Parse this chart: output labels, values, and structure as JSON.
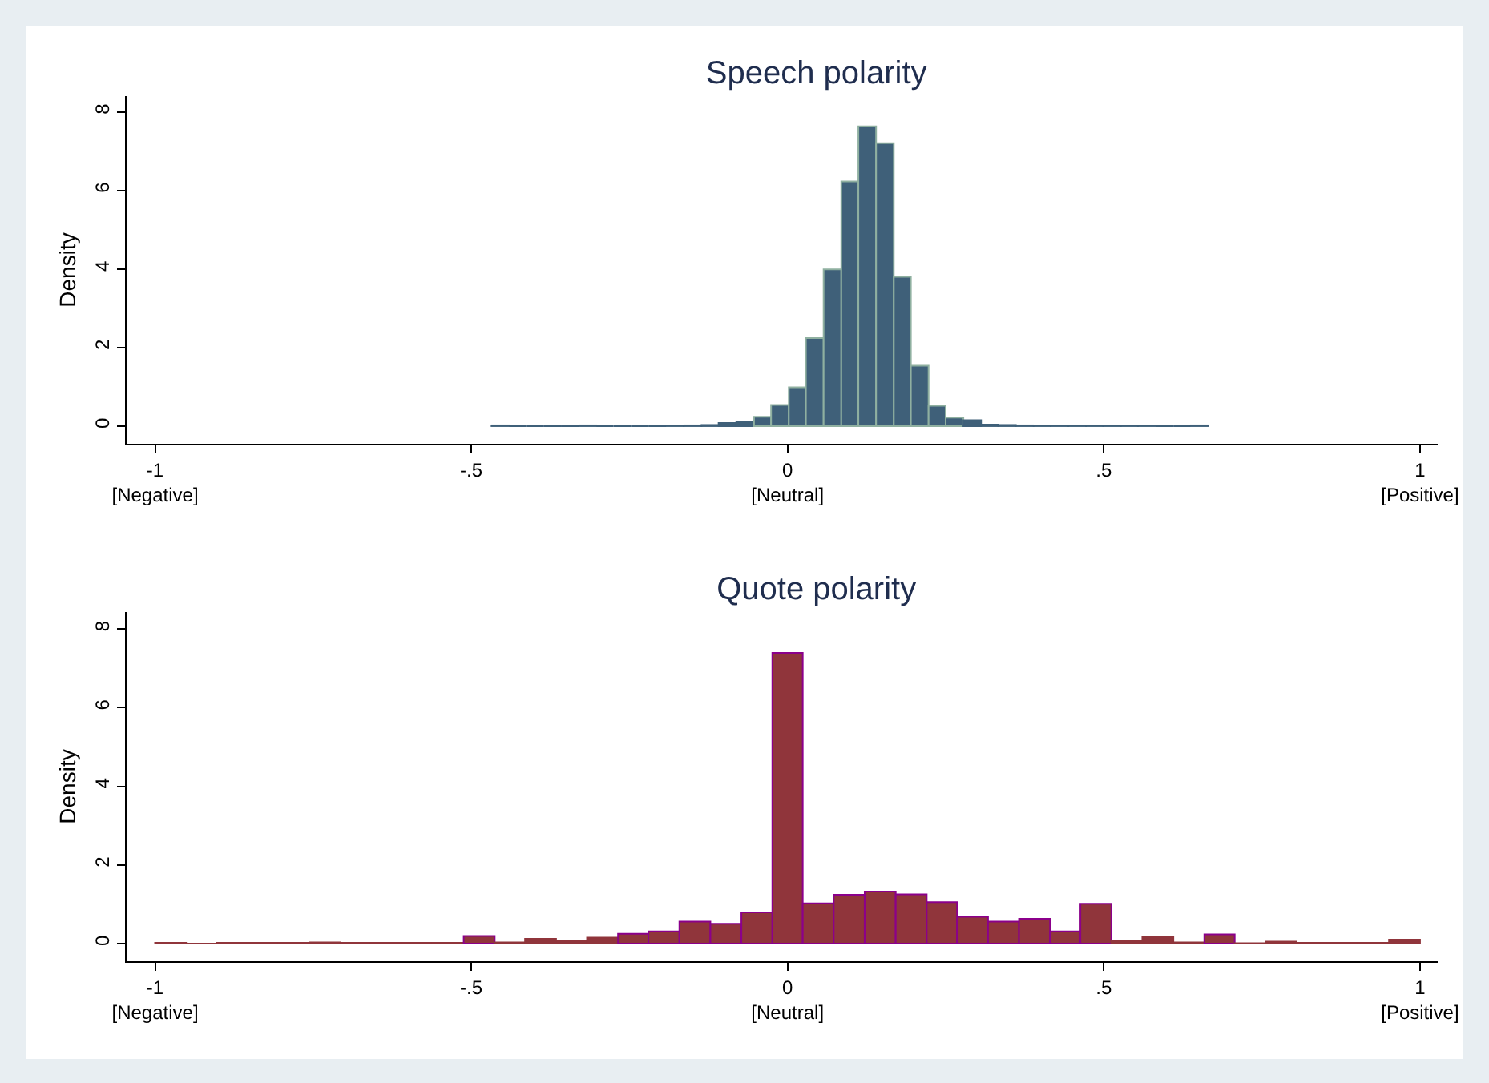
{
  "chart_data": [
    {
      "type": "histogram",
      "title": "Speech polarity",
      "ylabel": "Density",
      "color": "#3f6079",
      "bins": [
        -0.468,
        -0.44,
        -0.413,
        -0.385,
        -0.357,
        -0.33,
        -0.302,
        -0.275,
        -0.247,
        -0.219,
        -0.192,
        -0.164,
        -0.136,
        -0.109,
        -0.081,
        -0.053,
        -0.026,
        0.002,
        0.029,
        0.057,
        0.085,
        0.112,
        0.14,
        0.168,
        0.195,
        0.223,
        0.25,
        0.278,
        0.306,
        0.333,
        0.361,
        0.389,
        0.416,
        0.444,
        0.472,
        0.499,
        0.527,
        0.554,
        0.582,
        0.61,
        0.637,
        0.665
      ],
      "values": [
        0.02,
        0,
        0,
        0,
        0,
        0.02,
        0,
        0,
        0,
        0,
        0.01,
        0.02,
        0.03,
        0.08,
        0.11,
        0.24,
        0.54,
        0.99,
        2.24,
        3.99,
        6.23,
        7.63,
        7.2,
        3.8,
        1.54,
        0.52,
        0.22,
        0.15,
        0.04,
        0.03,
        0.02,
        0.01,
        0.01,
        0.01,
        0.01,
        0.01,
        0.01,
        0.01,
        0,
        0,
        0.02
      ],
      "xlim": [
        -1.045,
        1.028
      ],
      "ylim": [
        -0.45,
        8.4
      ],
      "xticks": [
        {
          "value": -1,
          "label": "-1\n[Negative]"
        },
        {
          "value": -0.5,
          "label": "-.5"
        },
        {
          "value": 0,
          "label": "0\n[Neutral]"
        },
        {
          "value": 0.5,
          "label": ".5"
        },
        {
          "value": 1,
          "label": "1\n[Positive]"
        }
      ],
      "yticks": [
        0,
        2,
        4,
        6,
        8
      ]
    },
    {
      "type": "histogram",
      "title": "Quote polarity",
      "ylabel": "Density",
      "color": "#90353b",
      "bins": [
        -1,
        -0.951,
        -0.902,
        -0.854,
        -0.805,
        -0.756,
        -0.707,
        -0.659,
        -0.61,
        -0.561,
        -0.512,
        -0.463,
        -0.415,
        -0.366,
        -0.317,
        -0.268,
        -0.22,
        -0.171,
        -0.122,
        -0.073,
        -0.024,
        0.024,
        0.073,
        0.122,
        0.171,
        0.22,
        0.268,
        0.317,
        0.366,
        0.415,
        0.463,
        0.512,
        0.561,
        0.61,
        0.659,
        0.707,
        0.756,
        0.805,
        0.854,
        0.902,
        0.951,
        1
      ],
      "values": [
        0.02,
        0,
        0.02,
        0.02,
        0.02,
        0.03,
        0.02,
        0.02,
        0.02,
        0.02,
        0.19,
        0.03,
        0.12,
        0.08,
        0.15,
        0.25,
        0.31,
        0.56,
        0.5,
        0.79,
        7.39,
        1.02,
        1.24,
        1.32,
        1.25,
        1.05,
        0.68,
        0.56,
        0.63,
        0.31,
        1.01,
        0.08,
        0.16,
        0.03,
        0.23,
        0.01,
        0.05,
        0.02,
        0.02,
        0.02,
        0.1
      ],
      "xlim": [
        -1.045,
        1.028
      ],
      "ylim": [
        -0.45,
        8.43
      ],
      "xticks": [
        {
          "value": -1,
          "label": "-1\n[Negative]"
        },
        {
          "value": -0.5,
          "label": "-.5"
        },
        {
          "value": 0,
          "label": "0\n[Neutral]"
        },
        {
          "value": 0.5,
          "label": ".5"
        },
        {
          "value": 1,
          "label": "1\n[Positive]"
        }
      ],
      "yticks": [
        0,
        2,
        4,
        6,
        8
      ]
    }
  ]
}
